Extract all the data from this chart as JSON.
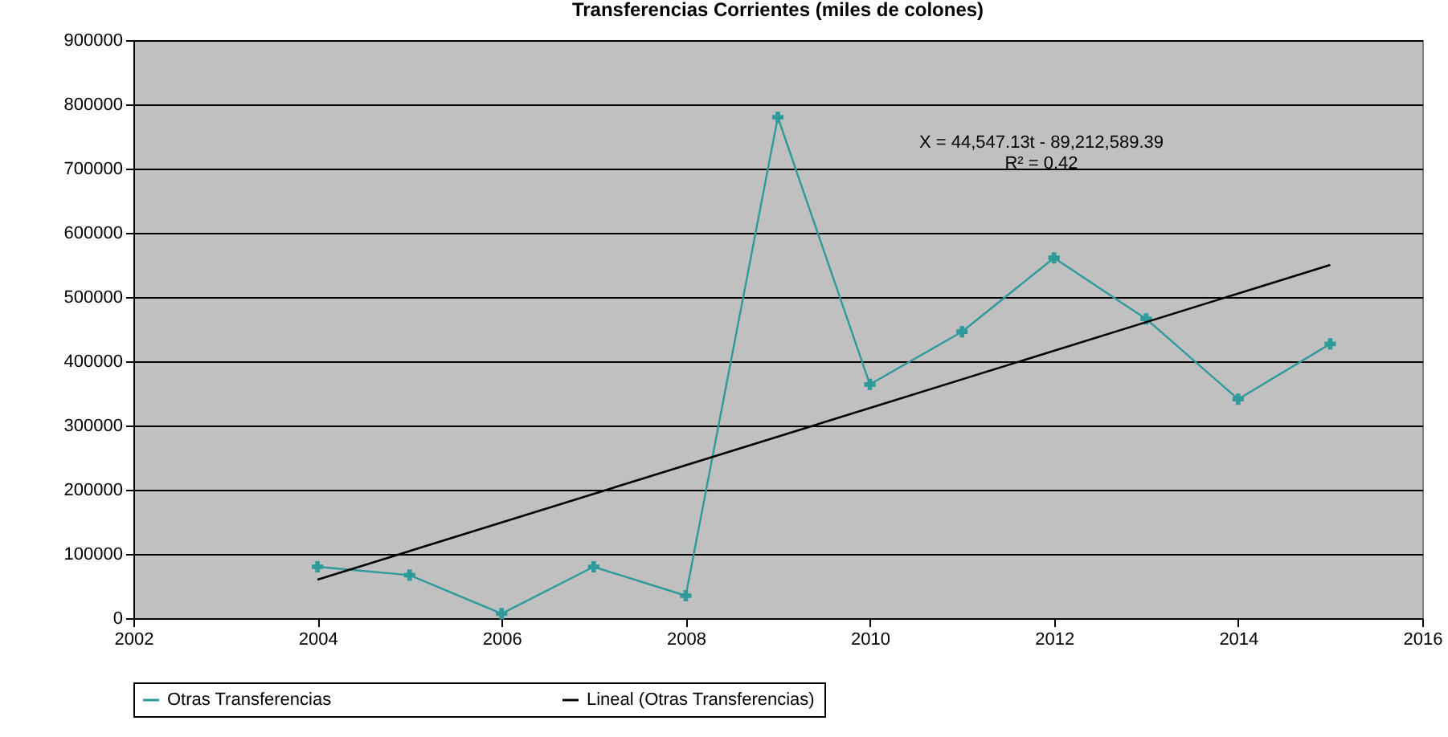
{
  "chart_data": {
    "type": "line",
    "title": "Transferencias Corrientes (miles de colones)",
    "x": [
      2004,
      2005,
      2006,
      2007,
      2008,
      2009,
      2010,
      2011,
      2012,
      2013,
      2014,
      2015
    ],
    "series": [
      {
        "name": "Otras Transferencias",
        "color": "#2e9a9a",
        "marker": "cross",
        "values": [
          80000,
          67000,
          7000,
          80000,
          35000,
          780000,
          364000,
          446000,
          561000,
          466000,
          341000,
          427000
        ]
      },
      {
        "name": "Lineal (Otras Transferencias)",
        "color": "#000000",
        "type": "line",
        "marker": "none",
        "x": [
          2004,
          2015
        ],
        "values": [
          60000,
          550000
        ]
      }
    ],
    "annotations": [
      "X = 44,547.13t  - 89,212,589.39",
      "R² = 0.42"
    ],
    "xlim": [
      2002,
      2016
    ],
    "xticks": [
      2002,
      2004,
      2006,
      2008,
      2010,
      2012,
      2014,
      2016
    ],
    "ylim": [
      0,
      900000
    ],
    "yticks": [
      0,
      100000,
      200000,
      300000,
      400000,
      500000,
      600000,
      700000,
      800000,
      900000
    ],
    "grid": "y",
    "legend": "bottom"
  }
}
